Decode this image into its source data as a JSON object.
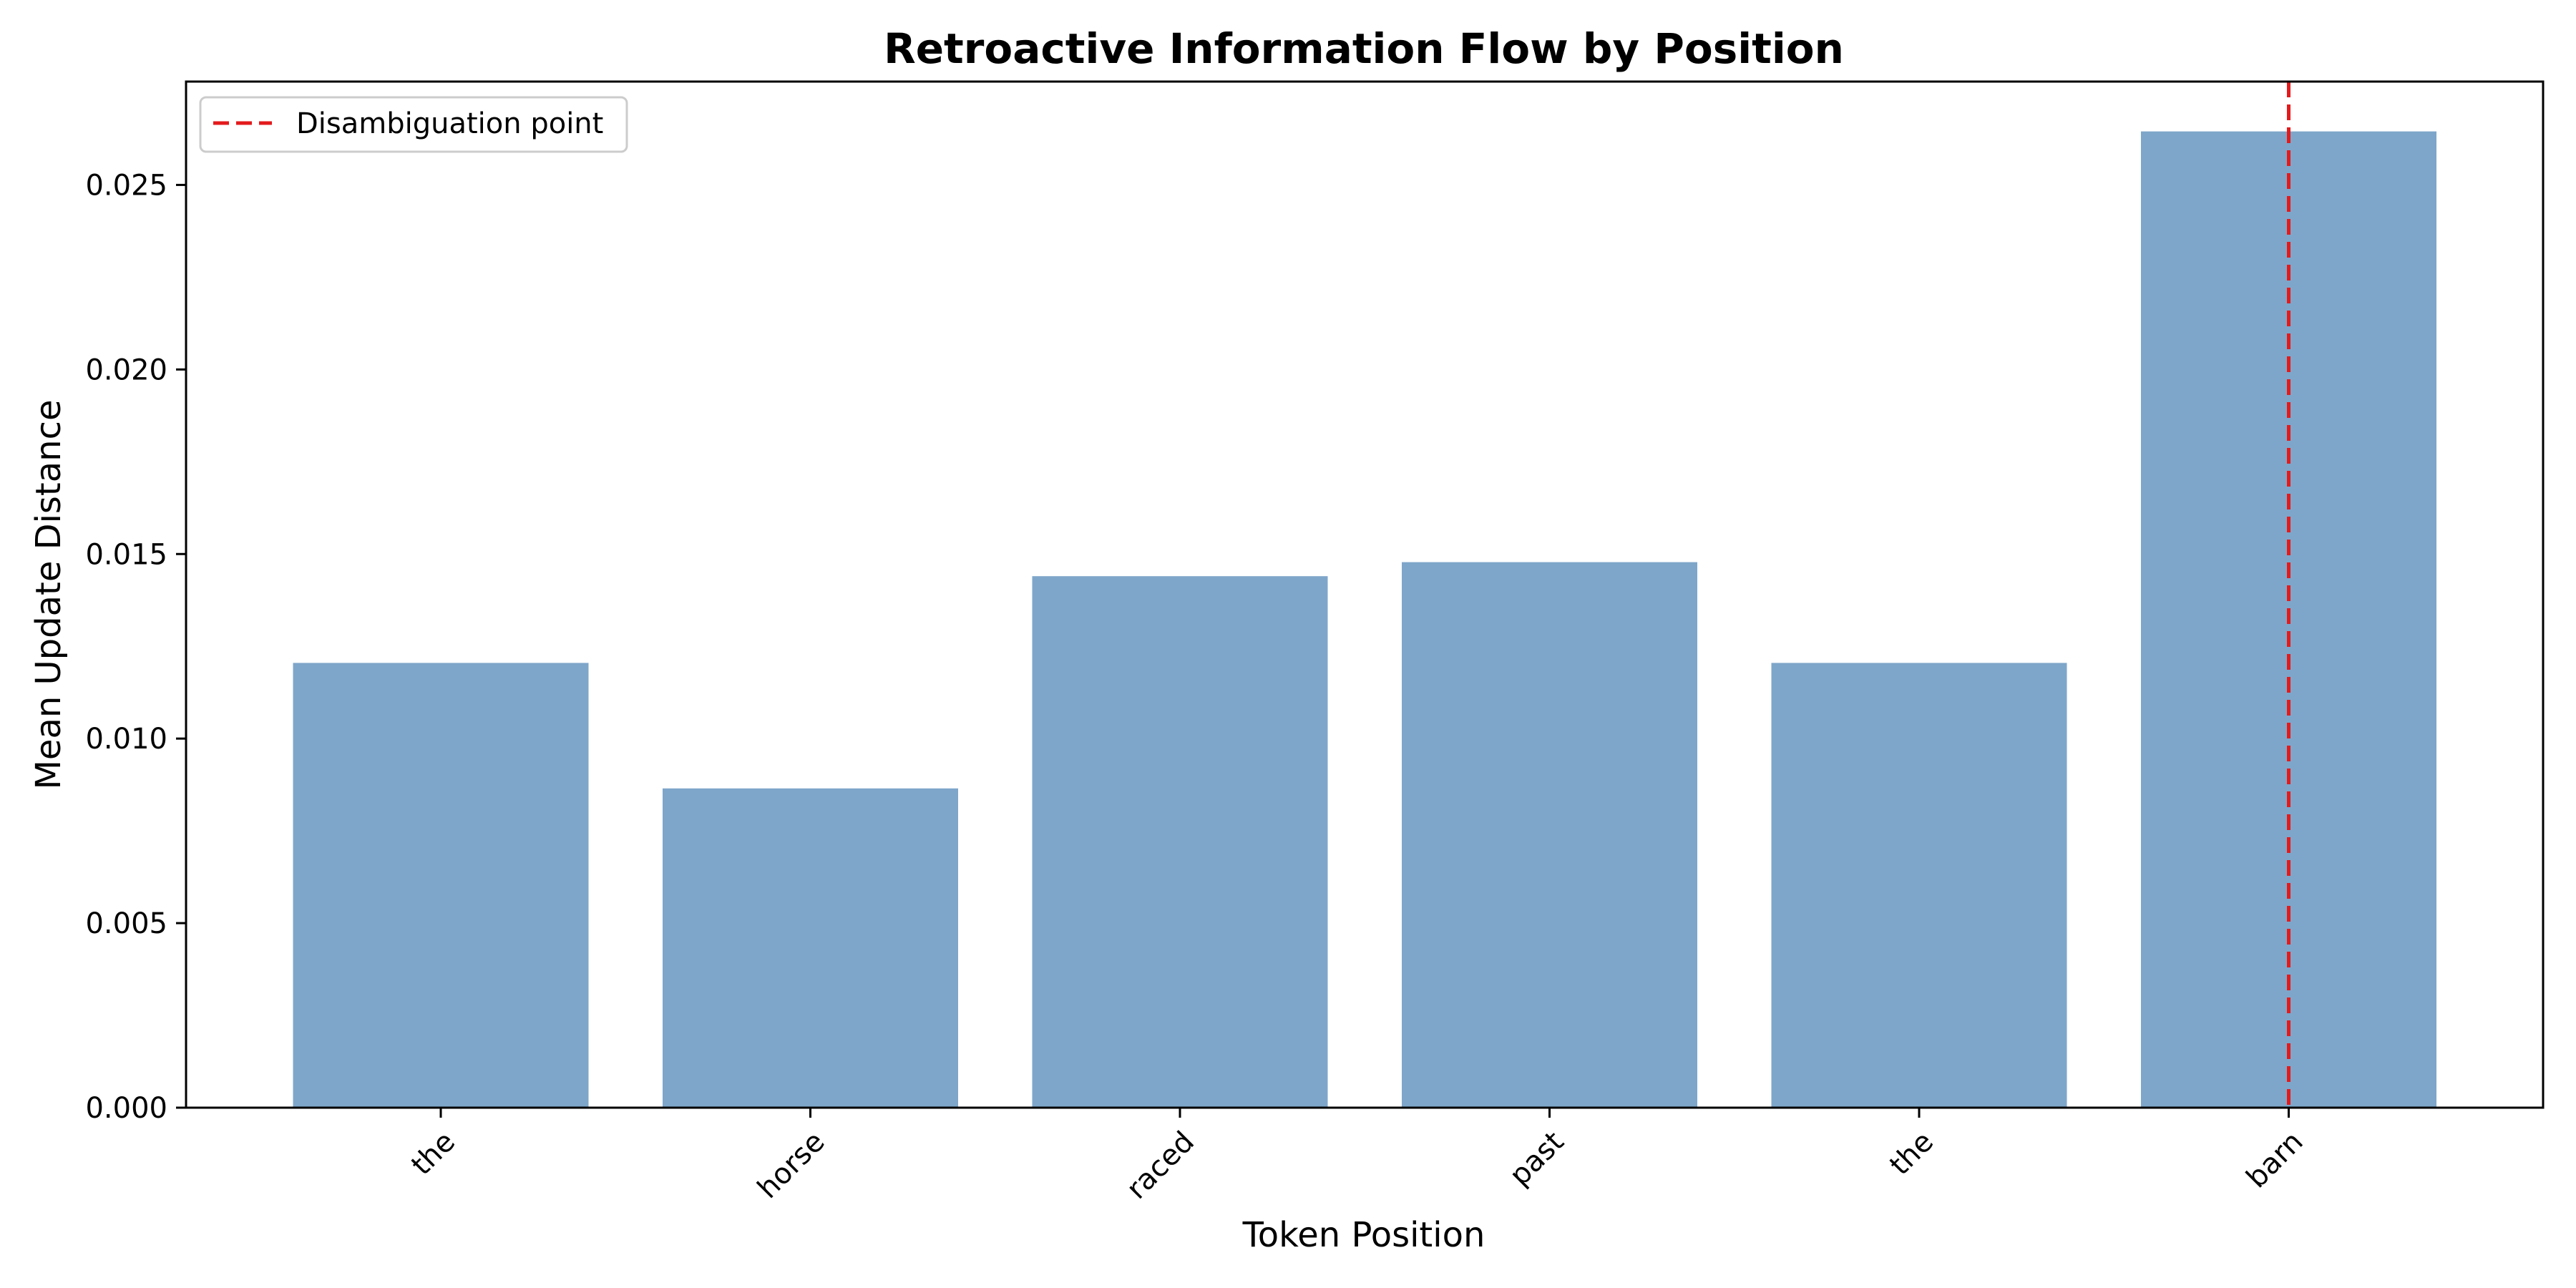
{
  "chart_data": {
    "type": "bar",
    "title": "Retroactive Information Flow by Position",
    "xlabel": "Token Position",
    "ylabel": "Mean Update Distance",
    "categories": [
      "the",
      "horse",
      "raced",
      "past",
      "the",
      "barn"
    ],
    "values": [
      0.01205,
      0.00865,
      0.0144,
      0.01478,
      0.01205,
      0.02645
    ],
    "ylim": [
      0,
      0.0278
    ],
    "yticks": [
      "0.000",
      "0.005",
      "0.010",
      "0.015",
      "0.020",
      "0.025"
    ],
    "bar_color": "#7ea6ca",
    "grid": false,
    "legend": {
      "position": "top-left",
      "entries": [
        "Disambiguation point"
      ]
    },
    "annotation": {
      "type": "vline",
      "category_index": 5,
      "color": "#e31a1c",
      "style": "dashed",
      "label": "Disambiguation point"
    }
  }
}
